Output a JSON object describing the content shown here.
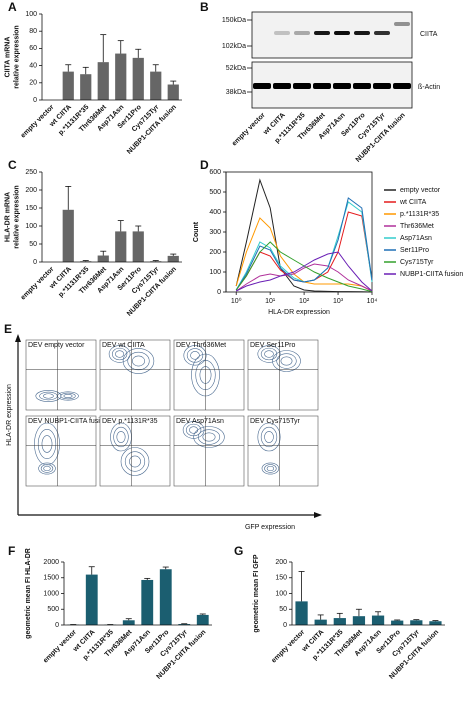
{
  "chart_data": [
    {
      "type": "bar",
      "label": "A",
      "ylabel": [
        "CIITA mRNA",
        "relative expression"
      ],
      "color": "#666666",
      "categories": [
        "empty vector",
        "wt CIITA",
        "p.*1131R*35",
        "Thr636Met",
        "Asp71Asn",
        "Ser11Pro",
        "Cys715Tyr",
        "NUBP1-CIITA fusion"
      ],
      "values": [
        0,
        33,
        30,
        44,
        54,
        49,
        33,
        18
      ],
      "errors": [
        0,
        8,
        8,
        32,
        15,
        10,
        8,
        4
      ],
      "ylim": [
        0,
        100
      ],
      "yticks": [
        0,
        20,
        40,
        60,
        80,
        100
      ]
    },
    {
      "type": "bar",
      "label": "C",
      "ylabel": [
        "HLA-DR mRNA",
        "relative expression"
      ],
      "color": "#666666",
      "categories": [
        "empty vector",
        "wt CIITA",
        "p.*1131R*35",
        "Thr636Met",
        "Asp71Asn",
        "Ser11Pro",
        "Cys715Tyr",
        "NUBP1-CIITA fusion"
      ],
      "values": [
        0,
        145,
        2,
        18,
        85,
        85,
        2,
        17
      ],
      "errors": [
        0,
        65,
        2,
        12,
        30,
        15,
        2,
        5
      ],
      "ylim": [
        0,
        250
      ],
      "yticks": [
        0,
        50,
        100,
        150,
        200,
        250
      ]
    },
    {
      "type": "line",
      "label": "D",
      "ylabel": [
        "Count"
      ],
      "xlabel": "HLA-DR expression",
      "xlog": true,
      "x": [
        1,
        2,
        5,
        10,
        20,
        50,
        100,
        200,
        500,
        1000,
        2000,
        5000,
        10000
      ],
      "xlim": [
        0.5,
        10000
      ],
      "xticks": [
        {
          "value": 1,
          "label": "10⁰"
        },
        {
          "value": 10,
          "label": "10¹"
        },
        {
          "value": 100,
          "label": "10²"
        },
        {
          "value": 1000,
          "label": "10³"
        },
        {
          "value": 10000,
          "label": "10⁴"
        }
      ],
      "ylim": [
        0,
        600
      ],
      "yticks": [
        0,
        100,
        200,
        300,
        400,
        500,
        600
      ],
      "series": [
        {
          "name": "empty vector",
          "color": "#222222",
          "values": [
            30,
            250,
            560,
            420,
            120,
            30,
            10,
            5,
            3,
            2,
            2,
            1,
            0
          ]
        },
        {
          "name": "wt CIITA",
          "color": "#e41a1c",
          "values": [
            10,
            80,
            200,
            180,
            110,
            60,
            50,
            60,
            100,
            200,
            400,
            380,
            60
          ]
        },
        {
          "name": "p.*1131R*35",
          "color": "#ff9900",
          "values": [
            30,
            200,
            370,
            320,
            180,
            90,
            50,
            40,
            40,
            40,
            40,
            30,
            5
          ]
        },
        {
          "name": "Thr636Met",
          "color": "#b0309a",
          "values": [
            5,
            40,
            80,
            90,
            80,
            90,
            120,
            140,
            130,
            100,
            60,
            30,
            5
          ]
        },
        {
          "name": "Asp71Asn",
          "color": "#33cccc",
          "values": [
            10,
            100,
            250,
            220,
            130,
            70,
            50,
            60,
            120,
            280,
            450,
            400,
            50
          ]
        },
        {
          "name": "Ser11Pro",
          "color": "#1f6fb5",
          "values": [
            10,
            90,
            230,
            210,
            120,
            60,
            50,
            60,
            120,
            260,
            470,
            420,
            60
          ]
        },
        {
          "name": "Cys715Tyr",
          "color": "#33a02c",
          "values": [
            10,
            80,
            200,
            250,
            200,
            160,
            130,
            100,
            70,
            50,
            30,
            15,
            2
          ]
        },
        {
          "name": "NUBP1-CIITA fusion",
          "color": "#6a1fb5",
          "values": [
            5,
            30,
            50,
            60,
            80,
            100,
            130,
            160,
            190,
            200,
            130,
            50,
            5
          ]
        }
      ]
    },
    {
      "type": "bar",
      "label": "F",
      "ylabel": [
        "geometric mean FI HLA-DR"
      ],
      "color": "#1b5e70",
      "categories": [
        "empty vector",
        "wt CIITA",
        "p.*1131R*35",
        "Thr636Met",
        "Asp71Asn",
        "Ser11Pro",
        "Cys715Tyr",
        "NUBP1-CIITA fusion"
      ],
      "values": [
        10,
        1600,
        10,
        150,
        1430,
        1770,
        30,
        320
      ],
      "errors": [
        5,
        250,
        5,
        50,
        50,
        70,
        10,
        30
      ],
      "ylim": [
        0,
        2000
      ],
      "yticks": [
        0,
        500,
        1000,
        1500,
        2000
      ]
    },
    {
      "type": "bar",
      "label": "G",
      "ylabel": [
        "geometric mean FI GFP"
      ],
      "color": "#1b5e70",
      "categories": [
        "empty vector",
        "wt CIITA",
        "p.*1131R*35",
        "Thr636Met",
        "Asp71Asn",
        "Ser11Pro",
        "Cys715Tyr",
        "NUBP1-CIITA fusion"
      ],
      "values": [
        75,
        17,
        22,
        28,
        30,
        14,
        15,
        12
      ],
      "errors": [
        95,
        15,
        15,
        22,
        12,
        2,
        2,
        2
      ],
      "ylim": [
        0,
        200
      ],
      "yticks": [
        0,
        50,
        100,
        150,
        200
      ]
    }
  ],
  "blot": {
    "label": "B",
    "markers": [
      "150kDa",
      "102kDa",
      "52kDa",
      "38kDa"
    ],
    "proteins": [
      "CIITA",
      "ß-Actin"
    ],
    "lanes": [
      "empty vector",
      "wt CIITA",
      "p.*1131R*35",
      "Thr636Met",
      "Asp71Asn",
      "Ser11Pro",
      "Cys715Tyr",
      "NUBP1-CIITA fusion"
    ]
  },
  "flow": {
    "label": "E",
    "ylabel": "HLA-DR expression",
    "xlabel": "GFP expression",
    "panels": [
      "DEV empty vector",
      "DEV wt CIITA",
      "DEV Thr636Met",
      "DEV Ser11Pro",
      "DEV NUBP1-CIITA fusion",
      "DEV p.*1131R*35",
      "DEV Asp71Asn",
      "DEV Cys715Tyr"
    ]
  }
}
